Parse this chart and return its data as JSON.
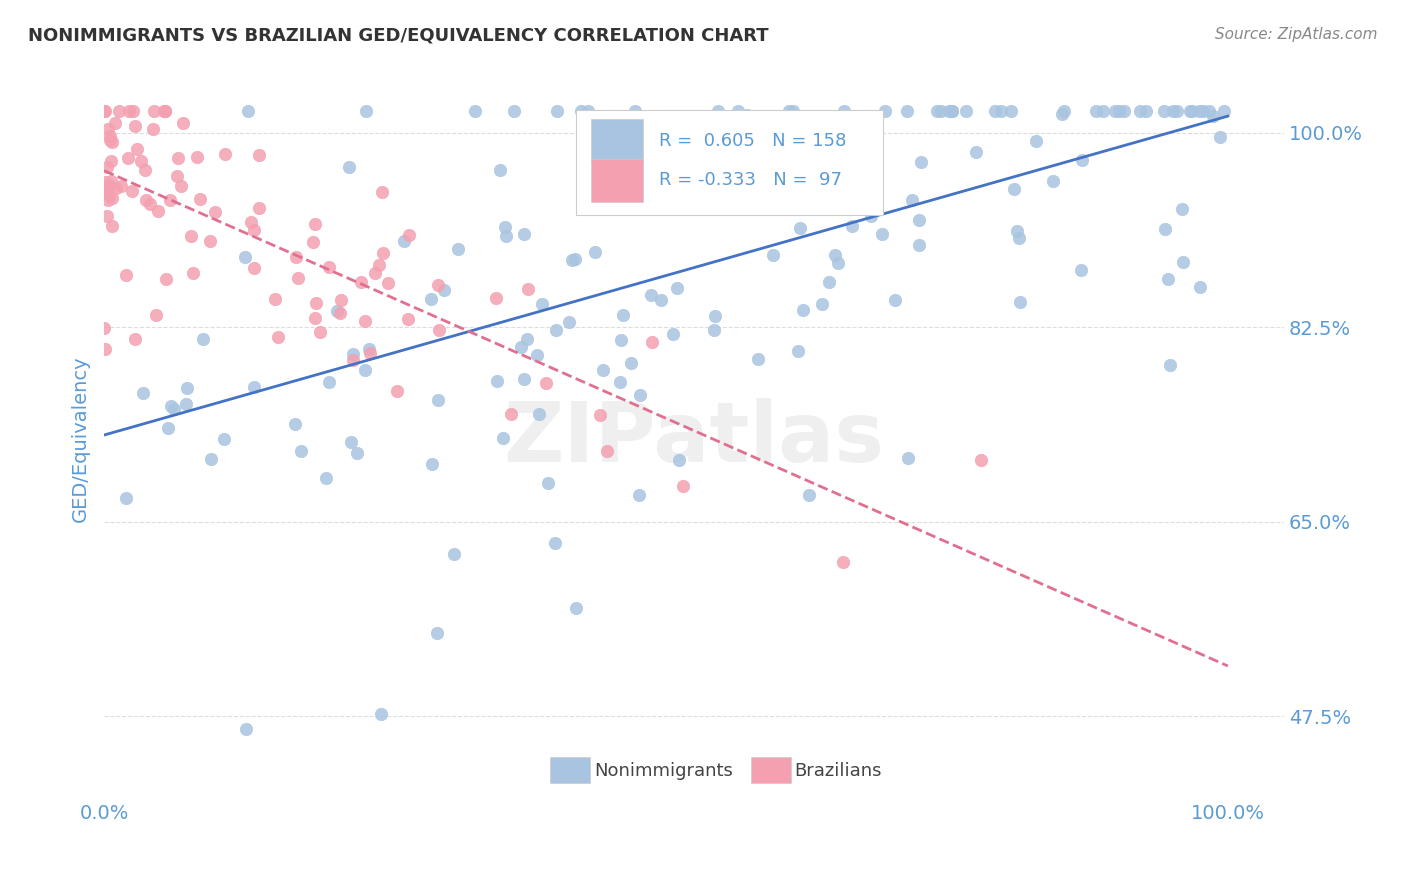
{
  "title": "NONIMMIGRANTS VS BRAZILIAN GED/EQUIVALENCY CORRELATION CHART",
  "source_text": "Source: ZipAtlas.com",
  "xlabel": "",
  "ylabel": "GED/Equivalency",
  "legend_label1": "Nonimmigrants",
  "legend_label2": "Brazilians",
  "R1": 0.605,
  "N1": 158,
  "R2": -0.333,
  "N2": 97,
  "color1": "#a8c4e0",
  "color2": "#f4a0b0",
  "trend_color1": "#4472c4",
  "trend_color2": "#e07090",
  "axis_color": "#5b9bd5",
  "ytick_labels": [
    "47.5%",
    "65.0%",
    "82.5%",
    "100.0%"
  ],
  "ytick_values": [
    0.475,
    0.65,
    0.825,
    1.0
  ],
  "xtick_labels": [
    "0.0%",
    "100.0%"
  ],
  "xtick_values": [
    0.0,
    1.0
  ],
  "ymin": 0.4,
  "ymax": 1.05,
  "xmin": 0.0,
  "xmax": 1.05,
  "grid_color": "#dddddd",
  "background_color": "#ffffff",
  "watermark_text": "ZIPatlas",
  "seed1": 42,
  "seed2": 99
}
